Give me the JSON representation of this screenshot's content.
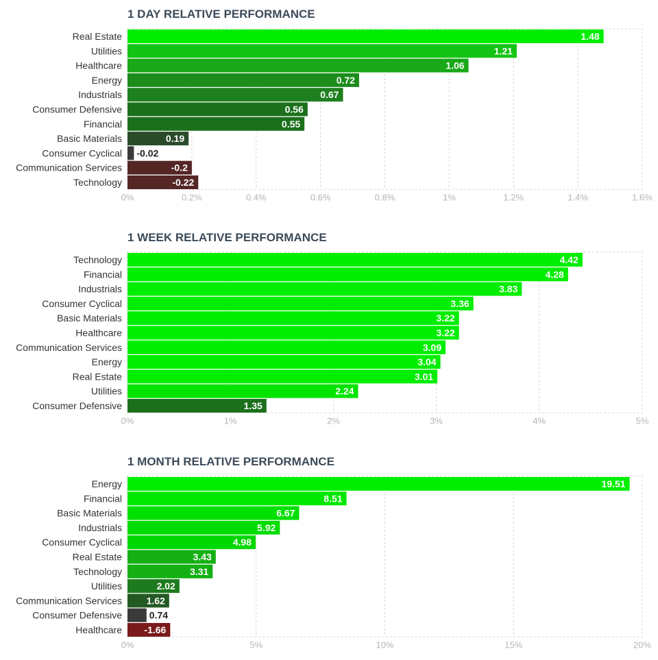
{
  "chart_data": [
    {
      "type": "bar",
      "orientation": "horizontal",
      "title": "1 DAY RELATIVE PERFORMANCE",
      "categories": [
        "Real Estate",
        "Utilities",
        "Healthcare",
        "Energy",
        "Industrials",
        "Consumer Defensive",
        "Financial",
        "Basic Materials",
        "Consumer Cyclical",
        "Communication Services",
        "Technology"
      ],
      "values": [
        1.48,
        1.21,
        1.06,
        0.72,
        0.67,
        0.56,
        0.55,
        0.19,
        -0.02,
        -0.2,
        -0.22
      ],
      "value_labels": [
        "1.48",
        "1.21",
        "1.06",
        "0.72",
        "0.67",
        "0.56",
        "0.55",
        "0.19",
        "-0.02",
        "-0.2",
        "-0.22"
      ],
      "xlim": [
        0,
        1.6
      ],
      "ticks": [
        0,
        0.2,
        0.4,
        0.6,
        0.8,
        1,
        1.2,
        1.4,
        1.6
      ],
      "tick_labels": [
        "0%",
        "0.2%",
        "0.4%",
        "0.6%",
        "0.8%",
        "1%",
        "1.2%",
        "1.4%",
        "1.6%"
      ],
      "bar_colors": [
        "#00ee00",
        "#14c414",
        "#18a818",
        "#1c8c1c",
        "#1e801e",
        "#1c701c",
        "#1c701c",
        "#2a4b2a",
        "#3a3a3a",
        "#552626",
        "#552626"
      ],
      "grid": true,
      "xlabel": "",
      "ylabel": ""
    },
    {
      "type": "bar",
      "orientation": "horizontal",
      "title": "1 WEEK RELATIVE PERFORMANCE",
      "categories": [
        "Technology",
        "Financial",
        "Industrials",
        "Consumer Cyclical",
        "Basic Materials",
        "Healthcare",
        "Communication Services",
        "Energy",
        "Real Estate",
        "Utilities",
        "Consumer Defensive"
      ],
      "values": [
        4.42,
        4.28,
        3.83,
        3.36,
        3.22,
        3.22,
        3.09,
        3.04,
        3.01,
        2.24,
        1.35
      ],
      "value_labels": [
        "4.42",
        "4.28",
        "3.83",
        "3.36",
        "3.22",
        "3.22",
        "3.09",
        "3.04",
        "3.01",
        "2.24",
        "1.35"
      ],
      "xlim": [
        0,
        5
      ],
      "ticks": [
        0,
        1,
        2,
        3,
        4,
        5
      ],
      "tick_labels": [
        "0%",
        "1%",
        "2%",
        "3%",
        "4%",
        "5%"
      ],
      "bar_colors": [
        "#00ee00",
        "#00ee00",
        "#00ee00",
        "#00ee00",
        "#00ee00",
        "#00ee00",
        "#00ee00",
        "#00ee00",
        "#00ee00",
        "#00e400",
        "#1c701c"
      ],
      "grid": true,
      "xlabel": "",
      "ylabel": ""
    },
    {
      "type": "bar",
      "orientation": "horizontal",
      "title": "1 MONTH RELATIVE PERFORMANCE",
      "categories": [
        "Energy",
        "Financial",
        "Basic Materials",
        "Industrials",
        "Consumer Cyclical",
        "Real Estate",
        "Technology",
        "Utilities",
        "Communication Services",
        "Consumer Defensive",
        "Healthcare"
      ],
      "values": [
        19.51,
        8.51,
        6.67,
        5.92,
        4.98,
        3.43,
        3.31,
        2.02,
        1.62,
        0.74,
        -1.66
      ],
      "value_labels": [
        "19.51",
        "8.51",
        "6.67",
        "5.92",
        "4.98",
        "3.43",
        "3.31",
        "2.02",
        "1.62",
        "0.74",
        "-1.66"
      ],
      "xlim": [
        0,
        20
      ],
      "ticks": [
        0,
        5,
        10,
        15,
        20
      ],
      "tick_labels": [
        "0%",
        "5%",
        "10%",
        "15%",
        "20%"
      ],
      "bar_colors": [
        "#00ee00",
        "#00e800",
        "#00e000",
        "#00dc00",
        "#00d800",
        "#16b016",
        "#16b016",
        "#1e7a1e",
        "#235a23",
        "#3a3a3a",
        "#7a1a1a"
      ],
      "grid": true,
      "xlabel": "",
      "ylabel": ""
    }
  ]
}
